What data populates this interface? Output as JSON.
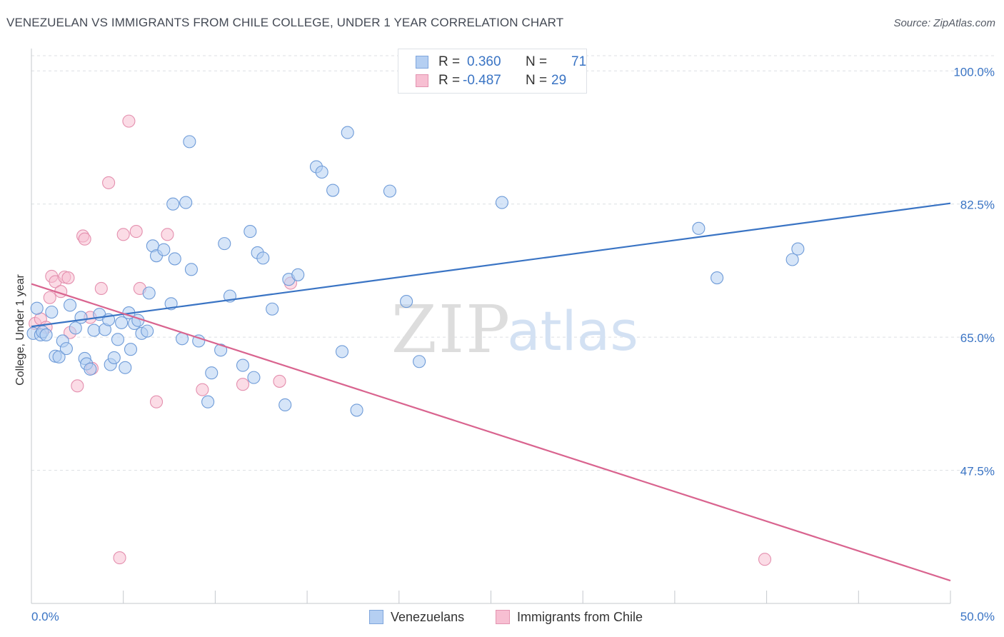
{
  "title": "VENEZUELAN VS IMMIGRANTS FROM CHILE COLLEGE, UNDER 1 YEAR CORRELATION CHART",
  "source": "Source: ZipAtlas.com",
  "watermark": {
    "zip": "ZIP",
    "atlas": "atlas"
  },
  "legend": {
    "r_label": "R =",
    "n_label": "N =",
    "series": [
      {
        "r": "0.360",
        "n": "71"
      },
      {
        "r": "-0.487",
        "n": "29"
      }
    ]
  },
  "bottom_legend": [
    "Venezuelans",
    "Immigrants from Chile"
  ],
  "colors": {
    "blue": "#3a74c4",
    "blue_fill": "#b5cff2",
    "pink": "#d9648f",
    "pink_fill": "#f7bfd2",
    "grid": "#dcdfe3"
  },
  "chart_data": {
    "type": "scatter",
    "title": "VENEZUELAN VS IMMIGRANTS FROM CHILE COLLEGE, UNDER 1 YEAR CORRELATION CHART",
    "xlabel": "",
    "ylabel": "College, Under 1 year",
    "xlim": [
      0,
      50
    ],
    "ylim": [
      30.0,
      102.0
    ],
    "x_tick_labels": [
      "0.0%",
      "50.0%"
    ],
    "y_ticks": [
      100.0,
      82.5,
      65.0,
      47.5
    ],
    "y_tick_labels": [
      "100.0%",
      "82.5%",
      "65.0%",
      "47.5%"
    ],
    "series": [
      {
        "name": "Venezuelans",
        "r": 0.36,
        "n": 71,
        "trend": {
          "x": [
            0,
            50
          ],
          "y": [
            66.4,
            82.6
          ]
        },
        "points": [
          [
            0.1,
            65.5
          ],
          [
            0.3,
            68.8
          ],
          [
            0.5,
            65.3
          ],
          [
            0.6,
            65.7
          ],
          [
            0.8,
            65.3
          ],
          [
            1.1,
            68.3
          ],
          [
            1.3,
            62.5
          ],
          [
            1.5,
            62.4
          ],
          [
            1.7,
            64.5
          ],
          [
            1.9,
            63.5
          ],
          [
            2.1,
            69.2
          ],
          [
            2.4,
            66.2
          ],
          [
            2.7,
            67.6
          ],
          [
            2.9,
            62.2
          ],
          [
            3.0,
            61.5
          ],
          [
            3.2,
            60.8
          ],
          [
            3.4,
            65.9
          ],
          [
            3.7,
            68.0
          ],
          [
            4.0,
            66.0
          ],
          [
            4.2,
            67.3
          ],
          [
            4.3,
            61.4
          ],
          [
            4.5,
            62.3
          ],
          [
            4.7,
            64.7
          ],
          [
            4.9,
            66.9
          ],
          [
            5.1,
            61.0
          ],
          [
            5.3,
            68.2
          ],
          [
            5.4,
            63.4
          ],
          [
            5.6,
            66.8
          ],
          [
            5.8,
            67.2
          ],
          [
            6.0,
            65.5
          ],
          [
            6.3,
            65.8
          ],
          [
            6.4,
            70.8
          ],
          [
            6.6,
            77.0
          ],
          [
            6.8,
            75.7
          ],
          [
            7.2,
            76.5
          ],
          [
            7.6,
            69.4
          ],
          [
            7.7,
            82.5
          ],
          [
            7.8,
            75.3
          ],
          [
            8.2,
            64.8
          ],
          [
            8.4,
            82.7
          ],
          [
            8.6,
            90.7
          ],
          [
            8.7,
            73.9
          ],
          [
            9.1,
            64.5
          ],
          [
            9.6,
            56.5
          ],
          [
            9.8,
            60.3
          ],
          [
            10.3,
            63.3
          ],
          [
            10.5,
            77.3
          ],
          [
            10.8,
            70.4
          ],
          [
            11.5,
            61.3
          ],
          [
            11.9,
            78.9
          ],
          [
            12.1,
            59.7
          ],
          [
            12.3,
            76.1
          ],
          [
            12.6,
            75.4
          ],
          [
            13.1,
            68.7
          ],
          [
            13.8,
            56.1
          ],
          [
            14.0,
            72.6
          ],
          [
            14.5,
            73.2
          ],
          [
            15.5,
            87.4
          ],
          [
            15.8,
            86.7
          ],
          [
            16.4,
            84.3
          ],
          [
            16.9,
            63.1
          ],
          [
            17.2,
            91.9
          ],
          [
            17.7,
            55.4
          ],
          [
            19.5,
            84.2
          ],
          [
            20.4,
            69.7
          ],
          [
            21.1,
            61.8
          ],
          [
            25.6,
            82.7
          ],
          [
            36.3,
            79.3
          ],
          [
            37.3,
            72.8
          ],
          [
            41.4,
            75.2
          ],
          [
            41.7,
            76.6
          ]
        ]
      },
      {
        "name": "Immigrants from Chile",
        "r": -0.487,
        "n": 29,
        "trend": {
          "x": [
            0,
            50
          ],
          "y": [
            72.0,
            33.0
          ]
        },
        "points": [
          [
            0.2,
            66.8
          ],
          [
            0.5,
            67.4
          ],
          [
            0.8,
            66.3
          ],
          [
            1.0,
            70.2
          ],
          [
            1.1,
            73.0
          ],
          [
            1.3,
            72.3
          ],
          [
            1.6,
            71.0
          ],
          [
            1.8,
            72.9
          ],
          [
            2.0,
            72.8
          ],
          [
            2.1,
            65.6
          ],
          [
            2.5,
            58.6
          ],
          [
            2.8,
            78.3
          ],
          [
            2.9,
            77.9
          ],
          [
            3.2,
            67.6
          ],
          [
            3.3,
            60.9
          ],
          [
            3.8,
            71.4
          ],
          [
            4.2,
            85.3
          ],
          [
            4.8,
            36.0
          ],
          [
            5.0,
            78.5
          ],
          [
            5.3,
            93.4
          ],
          [
            5.7,
            78.9
          ],
          [
            5.9,
            71.4
          ],
          [
            6.8,
            56.5
          ],
          [
            7.4,
            78.5
          ],
          [
            9.3,
            58.1
          ],
          [
            11.5,
            58.8
          ],
          [
            13.5,
            59.2
          ],
          [
            14.1,
            72.1
          ],
          [
            39.9,
            35.8
          ]
        ]
      }
    ]
  }
}
